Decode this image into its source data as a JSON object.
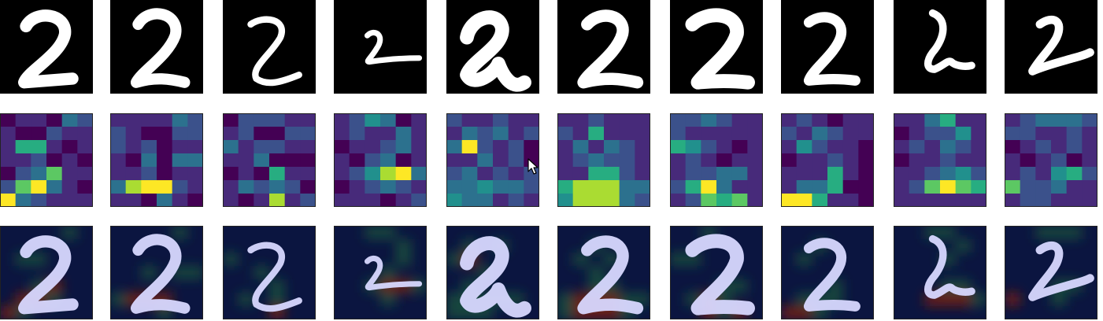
{
  "figure": {
    "rows": [
      {
        "name": "input-digits"
      },
      {
        "name": "heatmaps"
      },
      {
        "name": "overlays"
      }
    ],
    "columns": 10,
    "digit_label": "2",
    "colors": {
      "background": "#000000",
      "digit": "#ffffff",
      "overlay_digit": "#d8d8ff",
      "viridis": [
        "#440154",
        "#472a7a",
        "#3b518b",
        "#2c718e",
        "#21908d",
        "#27ad81",
        "#5cc863",
        "#aadc32",
        "#fde725"
      ],
      "overlay_base": "#0b1540",
      "overlay_warm": "#7a1f12",
      "overlay_green": "#1f5a3a"
    },
    "heatmaps": [
      [
        [
          0,
          1,
          1,
          0,
          3,
          2
        ],
        [
          1,
          0,
          0,
          2,
          1,
          1
        ],
        [
          1,
          5,
          5,
          1,
          0,
          1
        ],
        [
          1,
          1,
          2,
          0,
          1,
          0
        ],
        [
          0,
          2,
          3,
          6,
          1,
          1
        ],
        [
          2,
          6,
          8,
          3,
          1,
          0
        ],
        [
          8,
          3,
          2,
          1,
          1,
          1
        ]
      ],
      [
        [
          1,
          1,
          1,
          1,
          3,
          2
        ],
        [
          2,
          1,
          0,
          0,
          2,
          2
        ],
        [
          2,
          1,
          2,
          0,
          1,
          1
        ],
        [
          1,
          0,
          3,
          0,
          3,
          3
        ],
        [
          1,
          1,
          2,
          0,
          1,
          1
        ],
        [
          3,
          7,
          8,
          8,
          2,
          1
        ],
        [
          1,
          1,
          0,
          3,
          1,
          0
        ]
      ],
      [
        [
          0,
          2,
          2,
          2,
          1,
          1
        ],
        [
          1,
          2,
          0,
          0,
          2,
          2
        ],
        [
          3,
          1,
          2,
          2,
          1,
          1
        ],
        [
          1,
          1,
          3,
          0,
          0,
          0
        ],
        [
          0,
          1,
          0,
          5,
          1,
          1
        ],
        [
          1,
          3,
          2,
          3,
          2,
          0
        ],
        [
          1,
          0,
          1,
          7,
          1,
          2
        ]
      ],
      [
        [
          1,
          2,
          4,
          3,
          0,
          1
        ],
        [
          1,
          2,
          1,
          1,
          3,
          1
        ],
        [
          0,
          1,
          1,
          2,
          3,
          1
        ],
        [
          1,
          0,
          2,
          3,
          0,
          1
        ],
        [
          1,
          2,
          4,
          7,
          8,
          3
        ],
        [
          0,
          1,
          2,
          3,
          2,
          1
        ],
        [
          1,
          1,
          1,
          0,
          1,
          2
        ]
      ],
      [
        [
          2,
          1,
          1,
          2,
          1,
          1
        ],
        [
          1,
          3,
          2,
          3,
          1,
          2
        ],
        [
          3,
          8,
          2,
          1,
          2,
          0
        ],
        [
          1,
          1,
          3,
          1,
          2,
          0
        ],
        [
          2,
          3,
          1,
          2,
          1,
          2
        ],
        [
          3,
          3,
          4,
          3,
          3,
          2
        ],
        [
          4,
          3,
          3,
          1,
          2,
          1
        ]
      ],
      [
        [
          1,
          1,
          2,
          1,
          1,
          1
        ],
        [
          2,
          1,
          5,
          1,
          1,
          1
        ],
        [
          1,
          3,
          1,
          3,
          2,
          1
        ],
        [
          1,
          2,
          3,
          2,
          2,
          1
        ],
        [
          1,
          1,
          5,
          5,
          2,
          1
        ],
        [
          5,
          7,
          7,
          7,
          3,
          3
        ],
        [
          4,
          7,
          7,
          7,
          3,
          2
        ]
      ],
      [
        [
          2,
          2,
          3,
          2,
          1,
          1
        ],
        [
          2,
          1,
          1,
          1,
          1,
          1
        ],
        [
          5,
          4,
          2,
          1,
          0,
          1
        ],
        [
          1,
          2,
          1,
          0,
          1,
          1
        ],
        [
          1,
          2,
          2,
          3,
          3,
          1
        ],
        [
          2,
          5,
          8,
          3,
          1,
          1
        ],
        [
          1,
          2,
          6,
          5,
          6,
          1
        ]
      ],
      [
        [
          1,
          2,
          1,
          0,
          1,
          1
        ],
        [
          2,
          1,
          3,
          2,
          1,
          1
        ],
        [
          1,
          4,
          2,
          1,
          1,
          0
        ],
        [
          0,
          1,
          1,
          2,
          1,
          0
        ],
        [
          1,
          1,
          1,
          5,
          1,
          0
        ],
        [
          1,
          3,
          3,
          5,
          0,
          0
        ],
        [
          8,
          8,
          5,
          1,
          1,
          0
        ]
      ],
      [
        [
          1,
          1,
          3,
          5,
          1,
          1
        ],
        [
          0,
          1,
          2,
          2,
          4,
          1
        ],
        [
          1,
          2,
          1,
          3,
          2,
          1
        ],
        [
          0,
          1,
          1,
          2,
          1,
          1
        ],
        [
          1,
          1,
          2,
          3,
          4,
          2
        ],
        [
          1,
          2,
          6,
          8,
          6,
          5
        ],
        [
          1,
          1,
          1,
          1,
          1,
          1
        ]
      ],
      [
        [
          1,
          2,
          3,
          3,
          3,
          2
        ],
        [
          2,
          2,
          1,
          1,
          2,
          1
        ],
        [
          0,
          1,
          2,
          1,
          2,
          1
        ],
        [
          1,
          0,
          1,
          2,
          0,
          1
        ],
        [
          1,
          2,
          1,
          4,
          5,
          2
        ],
        [
          6,
          2,
          2,
          3,
          1,
          1
        ],
        [
          1,
          2,
          2,
          1,
          1,
          1
        ]
      ]
    ]
  }
}
